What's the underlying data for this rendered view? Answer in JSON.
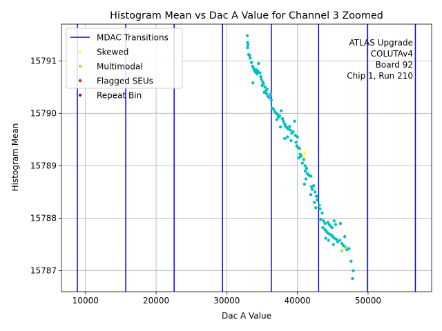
{
  "chart_data": {
    "type": "scatter",
    "title": "Histogram Mean vs Dac A Value for Channel 3 Zoomed",
    "xlabel": "Dac A Value",
    "ylabel": "Histogram Mean",
    "xlim": [
      6600,
      59000
    ],
    "ylim": [
      15786.6,
      15791.7
    ],
    "x_ticks": [
      10000,
      20000,
      30000,
      40000,
      50000
    ],
    "y_ticks": [
      15787,
      15788,
      15789,
      15790,
      15791
    ],
    "grid": true,
    "legend_position": "upper-left",
    "legend": [
      {
        "label": "MDAC Transitions",
        "kind": "line",
        "color": "#0000ff"
      },
      {
        "label": "Skewed",
        "kind": "dot",
        "color": "#ffff33"
      },
      {
        "label": "Multimodal",
        "kind": "dot",
        "color": "#99e633"
      },
      {
        "label": "Flagged SEUs",
        "kind": "dot",
        "color": "#dd2222"
      },
      {
        "label": "Repeat Bin",
        "kind": "dot",
        "color": "#7a0f8f"
      }
    ],
    "annotation_lines": [
      "ATLAS Upgrade",
      "COLUTAv4",
      "Board 92",
      "Chip 1, Run 210"
    ],
    "mdac_transitions": [
      8850,
      15700,
      22550,
      29400,
      36300,
      43000,
      49900,
      56700
    ],
    "series": [
      {
        "name": "Data",
        "color": "#00bfbf",
        "points": [
          [
            32900,
            15791.48
          ],
          [
            32950,
            15791.35
          ],
          [
            33000,
            15791.3
          ],
          [
            32950,
            15791.25
          ],
          [
            33100,
            15791.12
          ],
          [
            33250,
            15791.1
          ],
          [
            33300,
            15791.05
          ],
          [
            33500,
            15790.97
          ],
          [
            33650,
            15790.9
          ],
          [
            33800,
            15790.86
          ],
          [
            33900,
            15790.82
          ],
          [
            34000,
            15790.8
          ],
          [
            34100,
            15790.78
          ],
          [
            34200,
            15790.83
          ],
          [
            34300,
            15790.75
          ],
          [
            34400,
            15790.8
          ],
          [
            34500,
            15790.95
          ],
          [
            34700,
            15790.77
          ],
          [
            33700,
            15790.58
          ],
          [
            34800,
            15790.7
          ],
          [
            34900,
            15790.65
          ],
          [
            35100,
            15790.6
          ],
          [
            35200,
            15790.56
          ],
          [
            35000,
            15790.53
          ],
          [
            35400,
            15790.5
          ],
          [
            35500,
            15790.43
          ],
          [
            35300,
            15790.4
          ],
          [
            35600,
            15790.38
          ],
          [
            35800,
            15790.33
          ],
          [
            36000,
            15790.3
          ],
          [
            35700,
            15790.46
          ],
          [
            36200,
            15790.36
          ],
          [
            36300,
            15790.25
          ],
          [
            36400,
            15790.1
          ],
          [
            36600,
            15790.08
          ],
          [
            36800,
            15790.03
          ],
          [
            37000,
            15790.0
          ],
          [
            37200,
            15789.98
          ],
          [
            37300,
            15789.93
          ],
          [
            37100,
            15789.88
          ],
          [
            37500,
            15789.95
          ],
          [
            37700,
            15790.05
          ],
          [
            37900,
            15789.9
          ],
          [
            38000,
            15789.85
          ],
          [
            38200,
            15789.8
          ],
          [
            37600,
            15789.74
          ],
          [
            38300,
            15789.76
          ],
          [
            38500,
            15789.73
          ],
          [
            38700,
            15789.7
          ],
          [
            38900,
            15789.75
          ],
          [
            39000,
            15789.68
          ],
          [
            39200,
            15789.62
          ],
          [
            39400,
            15789.65
          ],
          [
            39600,
            15789.85
          ],
          [
            39700,
            15789.58
          ],
          [
            38600,
            15789.55
          ],
          [
            38200,
            15789.52
          ],
          [
            39100,
            15789.48
          ],
          [
            39800,
            15789.45
          ],
          [
            40000,
            15789.55
          ],
          [
            39900,
            15789.38
          ],
          [
            40100,
            15789.35
          ],
          [
            40300,
            15789.33
          ],
          [
            40400,
            15789.22
          ],
          [
            40500,
            15789.18
          ],
          [
            40200,
            15789.15
          ],
          [
            40700,
            15789.05
          ],
          [
            40900,
            15789.12
          ],
          [
            41100,
            15789.0
          ],
          [
            41300,
            15788.95
          ],
          [
            41100,
            15788.9
          ],
          [
            41400,
            15788.85
          ],
          [
            41600,
            15788.82
          ],
          [
            41900,
            15788.8
          ],
          [
            41200,
            15788.75
          ],
          [
            41000,
            15788.65
          ],
          [
            42000,
            15788.6
          ],
          [
            42300,
            15788.62
          ],
          [
            42100,
            15788.55
          ],
          [
            42500,
            15788.5
          ],
          [
            42700,
            15788.42
          ],
          [
            42800,
            15788.35
          ],
          [
            42400,
            15788.3
          ],
          [
            43100,
            15788.25
          ],
          [
            42600,
            15788.2
          ],
          [
            43200,
            15788.18
          ],
          [
            43500,
            15788.1
          ],
          [
            41900,
            15788.45
          ],
          [
            43300,
            15787.98
          ],
          [
            43700,
            15787.95
          ],
          [
            43900,
            15787.9
          ],
          [
            44300,
            15787.92
          ],
          [
            44500,
            15787.88
          ],
          [
            44700,
            15787.85
          ],
          [
            44900,
            15787.82
          ],
          [
            45200,
            15787.95
          ],
          [
            45400,
            15787.88
          ],
          [
            43600,
            15787.82
          ],
          [
            43900,
            15787.78
          ],
          [
            44100,
            15787.75
          ],
          [
            44300,
            15787.72
          ],
          [
            44500,
            15787.7
          ],
          [
            44800,
            15787.68
          ],
          [
            45000,
            15787.65
          ],
          [
            45200,
            15787.62
          ],
          [
            45500,
            15787.6
          ],
          [
            45700,
            15787.55
          ],
          [
            46000,
            15787.58
          ],
          [
            46300,
            15787.52
          ],
          [
            46500,
            15787.48
          ],
          [
            46800,
            15787.45
          ],
          [
            47000,
            15787.4
          ],
          [
            47300,
            15787.42
          ],
          [
            46100,
            15787.9
          ],
          [
            46700,
            15787.65
          ],
          [
            44000,
            15787.62
          ],
          [
            44400,
            15787.58
          ],
          [
            45100,
            15787.5
          ],
          [
            47600,
            15787.18
          ],
          [
            47900,
            15787.0
          ],
          [
            47800,
            15786.85
          ]
        ]
      },
      {
        "name": "Skewed",
        "color": "#ffff33",
        "points": [
          [
            40900,
            15789.18
          ],
          [
            41000,
            15789.25
          ]
        ]
      },
      {
        "name": "Multimodal",
        "color": "#99e633",
        "points": [
          [
            46300,
            15787.38
          ],
          [
            46900,
            15787.44
          ]
        ]
      }
    ]
  }
}
